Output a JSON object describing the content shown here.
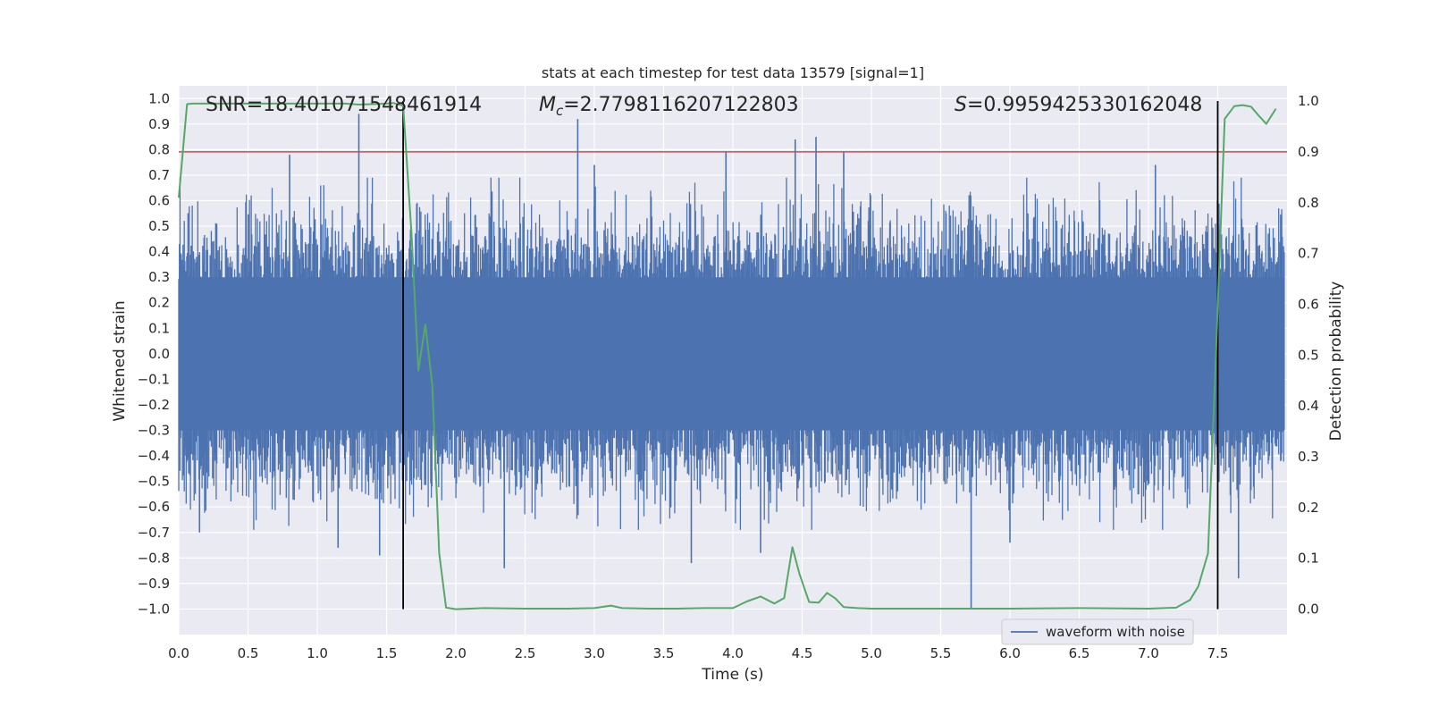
{
  "chart_data": {
    "type": "line",
    "title": "stats at each timestep for test data 13579 [signal=1]",
    "xlabel": "Time (s)",
    "ylabel_left": "Whitened strain",
    "ylabel_right": "Detection probability",
    "xlim": [
      0,
      8
    ],
    "ylim_left": [
      -1.1,
      1.05
    ],
    "ylim_right": [
      -0.05,
      1.03
    ],
    "x_ticks": [
      "0.0",
      "0.5",
      "1.0",
      "1.5",
      "2.0",
      "2.5",
      "3.0",
      "3.5",
      "4.0",
      "4.5",
      "5.0",
      "5.5",
      "6.0",
      "6.5",
      "7.0",
      "7.5"
    ],
    "x_tick_values": [
      0,
      0.5,
      1,
      1.5,
      2,
      2.5,
      3,
      3.5,
      4,
      4.5,
      5,
      5.5,
      6,
      6.5,
      7,
      7.5
    ],
    "y_left_ticks": [
      "1.0",
      "0.9",
      "0.8",
      "0.7",
      "0.6",
      "0.5",
      "0.4",
      "0.3",
      "0.2",
      "0.1",
      "0.0",
      "−0.1",
      "−0.2",
      "−0.3",
      "−0.4",
      "−0.5",
      "−0.6",
      "−0.7",
      "−0.8",
      "−0.9",
      "−1.0"
    ],
    "y_left_tick_values": [
      1.0,
      0.9,
      0.8,
      0.7,
      0.6,
      0.5,
      0.4,
      0.3,
      0.2,
      0.1,
      0.0,
      -0.1,
      -0.2,
      -0.3,
      -0.4,
      -0.5,
      -0.6,
      -0.7,
      -0.8,
      -0.9,
      -1.0
    ],
    "y_right_ticks": [
      "1.0",
      "0.9",
      "0.8",
      "0.7",
      "0.6",
      "0.5",
      "0.4",
      "0.3",
      "0.2",
      "0.1",
      "0.0"
    ],
    "y_right_tick_values": [
      1.0,
      0.9,
      0.8,
      0.7,
      0.6,
      0.5,
      0.4,
      0.3,
      0.2,
      0.1,
      0.0
    ],
    "grid": true,
    "legend_position": "bottom-right",
    "annotations": [
      {
        "text": "SNR=18.401071548461914",
        "x": 0.2
      },
      {
        "text": "=2.7798116207122803",
        "symbol": "M",
        "subscript": "c",
        "x": 2.6
      },
      {
        "text": "=0.9959425330162048",
        "symbol": "S",
        "x": 5.6
      }
    ],
    "threshold": {
      "axis": "right",
      "value": 0.9,
      "color": "#c44e52"
    },
    "vertical_lines": [
      1.62,
      7.5
    ],
    "series": [
      {
        "name": "waveform with noise",
        "axis": "left",
        "color": "#4c72b0",
        "kind": "noise-band",
        "x_range": [
          0,
          7.98
        ],
        "typical_envelope": [
          -0.4,
          0.4
        ],
        "max_value": 0.95,
        "min_value": -1.0,
        "spikes": [
          {
            "x": 0.8,
            "y": 0.78
          },
          {
            "x": 1.3,
            "y": 0.94
          },
          {
            "x": 2.88,
            "y": 0.92
          },
          {
            "x": 3.0,
            "y": 0.74
          },
          {
            "x": 3.95,
            "y": 0.79
          },
          {
            "x": 4.45,
            "y": 0.84
          },
          {
            "x": 4.6,
            "y": 0.85
          },
          {
            "x": 4.8,
            "y": 0.79
          },
          {
            "x": 7.05,
            "y": 0.74
          },
          {
            "x": 1.45,
            "y": -0.79
          },
          {
            "x": 2.35,
            "y": -0.84
          },
          {
            "x": 3.7,
            "y": -0.82
          },
          {
            "x": 4.2,
            "y": -0.78
          },
          {
            "x": 5.72,
            "y": -1.0
          },
          {
            "x": 6.0,
            "y": -0.74
          },
          {
            "x": 7.65,
            "y": -0.88
          },
          {
            "x": 1.15,
            "y": -0.76
          },
          {
            "x": 0.15,
            "y": -0.7
          }
        ]
      },
      {
        "name": "Detection probability",
        "axis": "right",
        "color": "#55a868",
        "x": [
          0.0,
          0.06,
          0.1,
          0.2,
          0.4,
          0.6,
          0.8,
          1.0,
          1.2,
          1.3,
          1.4,
          1.5,
          1.55,
          1.62,
          1.68,
          1.73,
          1.78,
          1.83,
          1.88,
          1.93,
          2.0,
          2.2,
          2.5,
          2.8,
          3.0,
          3.12,
          3.2,
          3.4,
          3.6,
          3.8,
          4.0,
          4.1,
          4.2,
          4.3,
          4.37,
          4.43,
          4.48,
          4.55,
          4.62,
          4.68,
          4.74,
          4.8,
          4.9,
          5.0,
          5.5,
          6.0,
          6.5,
          7.0,
          7.2,
          7.3,
          7.36,
          7.43,
          7.48,
          7.55,
          7.62,
          7.68,
          7.74,
          7.8,
          7.85,
          7.92
        ],
        "y": [
          0.81,
          0.994,
          0.995,
          0.995,
          0.995,
          0.995,
          0.995,
          0.995,
          0.995,
          0.993,
          0.994,
          0.995,
          0.996,
          0.991,
          0.74,
          0.47,
          0.56,
          0.44,
          0.11,
          0.003,
          0.0,
          0.002,
          0.001,
          0.001,
          0.002,
          0.007,
          0.002,
          0.001,
          0.001,
          0.002,
          0.002,
          0.015,
          0.025,
          0.011,
          0.022,
          0.122,
          0.07,
          0.014,
          0.013,
          0.032,
          0.021,
          0.004,
          0.002,
          0.001,
          0.001,
          0.001,
          0.002,
          0.001,
          0.003,
          0.018,
          0.045,
          0.11,
          0.45,
          0.965,
          0.99,
          0.992,
          0.989,
          0.97,
          0.955,
          0.985
        ]
      }
    ]
  }
}
